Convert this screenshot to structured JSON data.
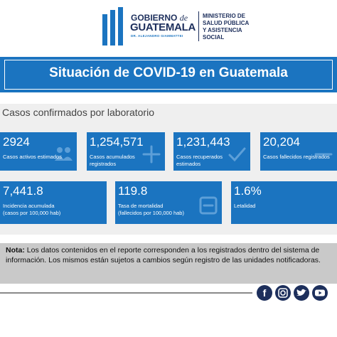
{
  "header": {
    "logo_top": "GOBIERNO",
    "logo_de": "de",
    "logo_main": "GUATEMALA",
    "logo_sub": "DR. ALEJANDRO GIAMMATTEI",
    "ministry": [
      "MINISTERIO DE",
      "SALUD PÚBLICA",
      "Y ASISTENCIA",
      "SOCIAL"
    ]
  },
  "banner": {
    "title": "Situación de COVID-19 en Guatemala"
  },
  "section": {
    "title": "Casos confirmados por laboratorio"
  },
  "cards": [
    {
      "value": "2924",
      "label": "Casos activos estimados"
    },
    {
      "value": "1,254,571",
      "label": "Casos acumulados registrados"
    },
    {
      "value": "1,231,443",
      "label": "Casos recuperados estimados"
    },
    {
      "value": "20,204",
      "label": "Casos fallecidos registrados"
    },
    {
      "value": "7,441.8",
      "label": "Incidencia acumulada (casos por 100,000 hab)"
    },
    {
      "value": "119.8",
      "label": "Tasa de mortalidad (fallecidos por 100,000 hab)"
    },
    {
      "value": "1.6%",
      "label": "Letalidad"
    }
  ],
  "note": {
    "lead": "Nota:",
    "text": "Los datos contenidos en el reporte corresponden a los registrados dentro del sistema de información. Los mismos están sujetos a cambios según registro de las unidades notificadoras."
  }
}
